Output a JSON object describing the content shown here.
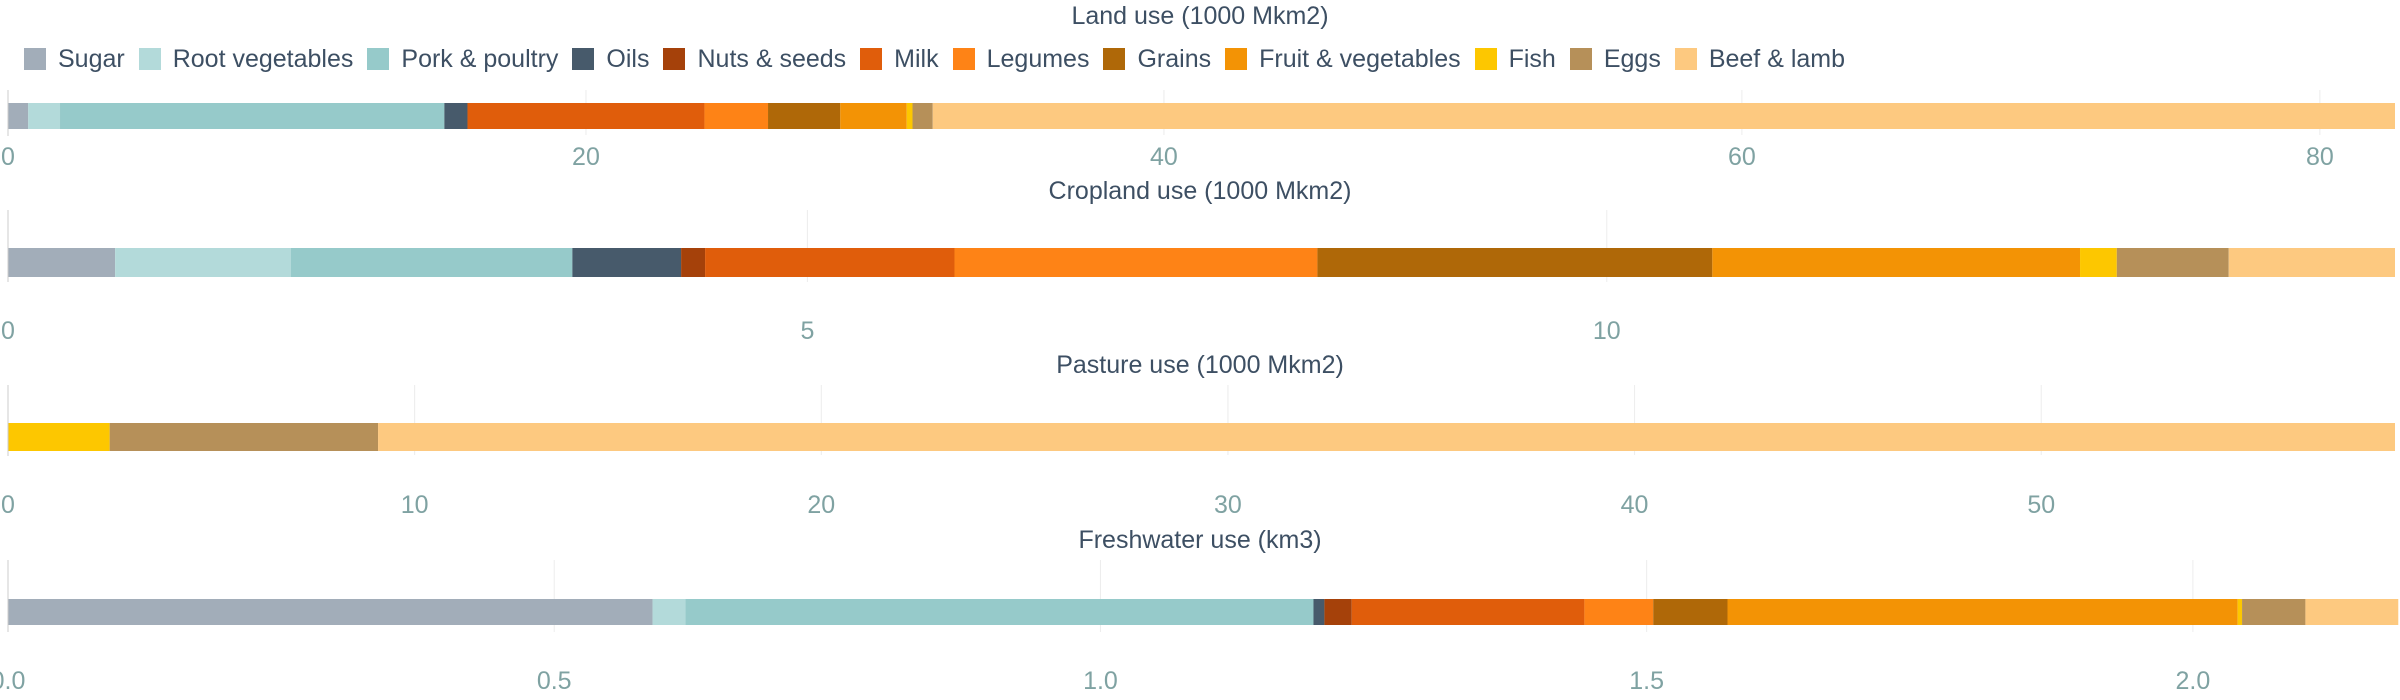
{
  "colors": {
    "Sugar": "#a2adb9",
    "Root vegetables": "#b3dada",
    "Pork & poultry": "#96caca",
    "Oils": "#475a6b",
    "Nuts & seeds": "#a5410a",
    "Milk": "#e05d0b",
    "Legumes": "#fe8316",
    "Grains": "#af6808",
    "Fruit & vegetables": "#f39305",
    "Fish": "#fdc700",
    "Eggs": "#b69059",
    "Beef & lamb": "#fdc980",
    "grid": "#ececec",
    "tick": "#7fa2a2",
    "title": "#3d4f63",
    "axis": "#cccccc"
  },
  "legend": [
    "Sugar",
    "Root vegetables",
    "Pork & poultry",
    "Oils",
    "Nuts & seeds",
    "Milk",
    "Legumes",
    "Grains",
    "Fruit & vegetables",
    "Fish",
    "Eggs",
    "Beef & lamb"
  ],
  "chart_data": [
    {
      "type": "bar",
      "orientation": "horizontal",
      "stacked": true,
      "title": "Land use (1000 Mkm2)",
      "xlim": [
        0,
        82.6
      ],
      "ticks": [
        0,
        20,
        40,
        60,
        80
      ],
      "tick_labels": [
        "0",
        "20",
        "40",
        "60",
        "80"
      ],
      "series": [
        {
          "name": "Sugar",
          "value": 0.7
        },
        {
          "name": "Root vegetables",
          "value": 1.1
        },
        {
          "name": "Pork & poultry",
          "value": 13.3
        },
        {
          "name": "Oils",
          "value": 0.8
        },
        {
          "name": "Nuts & seeds",
          "value": 0.0
        },
        {
          "name": "Milk",
          "value": 8.2
        },
        {
          "name": "Legumes",
          "value": 2.2
        },
        {
          "name": "Grains",
          "value": 2.5
        },
        {
          "name": "Fruit & vegetables",
          "value": 2.3
        },
        {
          "name": "Fish",
          "value": 0.2
        },
        {
          "name": "Eggs",
          "value": 0.7
        },
        {
          "name": "Beef & lamb",
          "value": 50.6
        }
      ]
    },
    {
      "type": "bar",
      "orientation": "horizontal",
      "stacked": true,
      "title": "Cropland use (1000 Mkm2)",
      "xlim": [
        0,
        14.93
      ],
      "ticks": [
        0,
        5,
        10
      ],
      "tick_labels": [
        "0",
        "5",
        "10"
      ],
      "series": [
        {
          "name": "Sugar",
          "value": 0.67
        },
        {
          "name": "Root vegetables",
          "value": 1.1
        },
        {
          "name": "Pork & poultry",
          "value": 1.76
        },
        {
          "name": "Oils",
          "value": 0.68
        },
        {
          "name": "Nuts & seeds",
          "value": 0.15
        },
        {
          "name": "Milk",
          "value": 1.56
        },
        {
          "name": "Legumes",
          "value": 2.27
        },
        {
          "name": "Grains",
          "value": 2.47
        },
        {
          "name": "Fruit & vegetables",
          "value": 2.3
        },
        {
          "name": "Fish",
          "value": 0.23
        },
        {
          "name": "Eggs",
          "value": 0.7
        },
        {
          "name": "Beef & lamb",
          "value": 1.04
        }
      ]
    },
    {
      "type": "bar",
      "orientation": "horizontal",
      "stacked": true,
      "title": "Pasture use (1000 Mkm2)",
      "xlim": [
        0,
        58.7
      ],
      "ticks": [
        0,
        10,
        20,
        30,
        40,
        50
      ],
      "tick_labels": [
        "0",
        "10",
        "20",
        "30",
        "40",
        "50"
      ],
      "series": [
        {
          "name": "Fish",
          "value": 2.5
        },
        {
          "name": "Eggs",
          "value": 6.6
        },
        {
          "name": "Beef & lamb",
          "value": 49.6
        }
      ]
    },
    {
      "type": "bar",
      "orientation": "horizontal",
      "stacked": true,
      "title": "Freshwater use (km3)",
      "xlim": [
        0,
        2.185
      ],
      "ticks": [
        0,
        0.5,
        1,
        1.5,
        2
      ],
      "tick_labels": [
        "0.0",
        "0.5",
        "1.0",
        "1.5",
        "2.0"
      ],
      "series": [
        {
          "name": "Sugar",
          "value": 0.59
        },
        {
          "name": "Root vegetables",
          "value": 0.03
        },
        {
          "name": "Pork & poultry",
          "value": 0.575
        },
        {
          "name": "Oils",
          "value": 0.01
        },
        {
          "name": "Nuts & seeds",
          "value": 0.025
        },
        {
          "name": "Milk",
          "value": 0.213
        },
        {
          "name": "Legumes",
          "value": 0.063
        },
        {
          "name": "Grains",
          "value": 0.068
        },
        {
          "name": "Fruit & vegetables",
          "value": 0.467
        },
        {
          "name": "Fish",
          "value": 0.004
        },
        {
          "name": "Eggs",
          "value": 0.058
        },
        {
          "name": "Beef & lamb",
          "value": 0.085
        }
      ]
    }
  ]
}
